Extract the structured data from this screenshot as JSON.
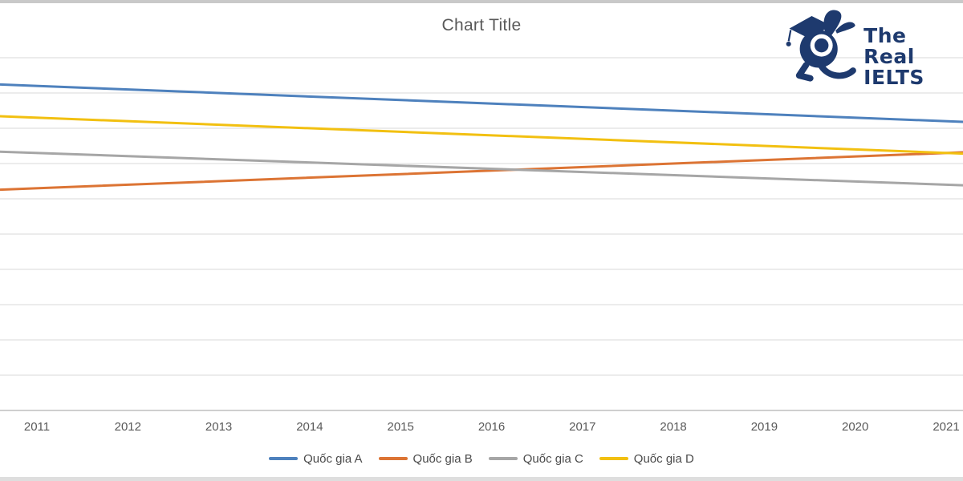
{
  "window": {
    "top_border_color": "#c9c9c9",
    "bottom_border_color": "#dedede",
    "background": "#ffffff"
  },
  "logo": {
    "line1": "The Real",
    "line2": "IELTS",
    "color": "#1e3a6e",
    "mascot": "rabbit-graduate"
  },
  "chart_data": {
    "type": "line",
    "title": "Chart Title",
    "title_color": "#595959",
    "x": [
      "2011",
      "2012",
      "2013",
      "2014",
      "2015",
      "2016",
      "2017",
      "2018",
      "2019",
      "2020",
      "2021"
    ],
    "series": [
      {
        "name": "Quốc gia A",
        "color": "#4e81bd",
        "values": [
          9.2,
          9.1,
          9.0,
          8.9,
          8.8,
          8.7,
          8.6,
          8.5,
          8.4,
          8.3,
          8.2
        ]
      },
      {
        "name": "Quốc gia B",
        "color": "#dc7434",
        "values": [
          6.3,
          6.4,
          6.5,
          6.6,
          6.7,
          6.8,
          6.9,
          7.0,
          7.1,
          7.2,
          7.3
        ]
      },
      {
        "name": "Quốc gia C",
        "color": "#a6a6a6",
        "values": [
          7.3,
          7.2,
          7.1,
          7.0,
          6.9,
          6.8,
          6.8,
          6.7,
          6.6,
          6.5,
          6.4
        ]
      },
      {
        "name": "Quốc gia D",
        "color": "#f2c011",
        "values": [
          8.3,
          8.2,
          8.1,
          8.0,
          7.9,
          7.8,
          7.7,
          7.6,
          7.5,
          7.4,
          7.3
        ]
      }
    ],
    "xlabel": "",
    "ylabel": "",
    "ylim": [
      0,
      10
    ],
    "y_tick_labels_visible": false,
    "gridlines": "horizontal",
    "gridline_color": "#d9d9d9",
    "axis_line_color": "#bfbfbf",
    "axis_label_color": "#595959",
    "legend_text_color": "#4a4a4a",
    "legend_position": "bottom"
  }
}
